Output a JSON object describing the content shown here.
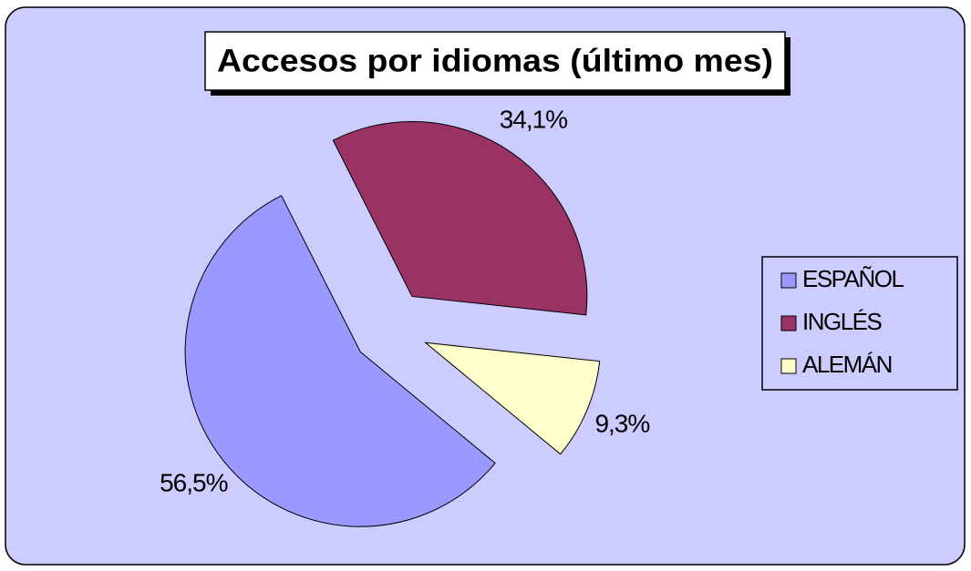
{
  "chart_data": {
    "type": "pie",
    "title": "Accesos por idiomas (último mes)",
    "categories": [
      "ESPAÑOL",
      "INGLÉS",
      "ALEMÁN"
    ],
    "values": [
      56.5,
      34.1,
      9.3
    ],
    "value_labels": [
      "56,5%",
      "34,1%",
      "9,3%"
    ],
    "colors": [
      "#9999ff",
      "#993366",
      "#ffffcc"
    ],
    "legend": "right"
  }
}
